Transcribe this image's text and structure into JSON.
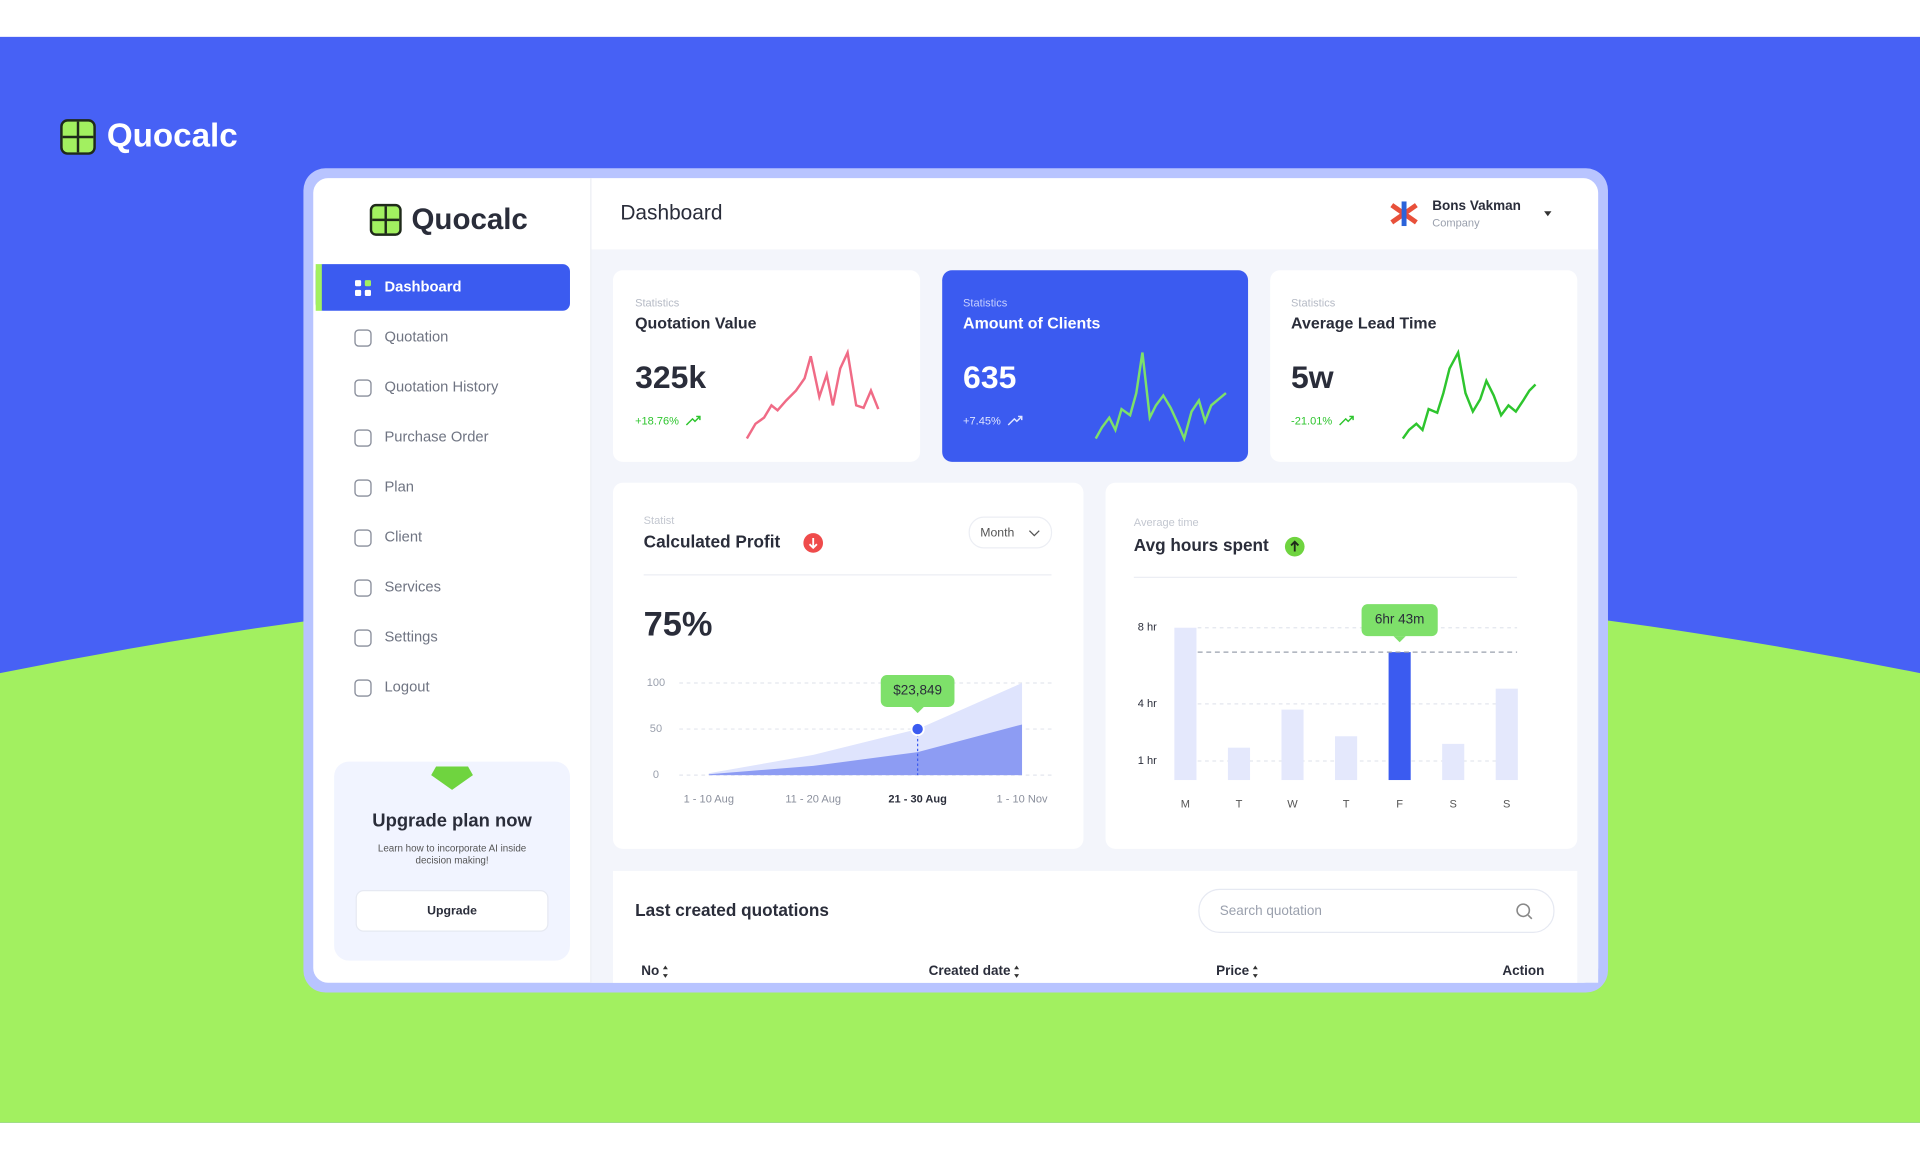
{
  "brand": "Quocalc",
  "sidebar": {
    "brand": "Quocalc",
    "nav": [
      "Dashboard",
      "Quotation",
      "Quotation History",
      "Purchase Order",
      "Plan",
      "Client",
      "Services",
      "Settings",
      "Logout"
    ],
    "upgrade": {
      "title": "Upgrade plan now",
      "text": [
        "Learn how to incorporate AI inside",
        "decision making!"
      ],
      "button": "Upgrade"
    }
  },
  "header": {
    "title": "Dashboard",
    "user": {
      "name": "Bons Vakman",
      "role": "Company"
    }
  },
  "stats": [
    {
      "label": "Statistics",
      "title": "Quotation Value",
      "value": "325k",
      "change": "+18.76%"
    },
    {
      "label": "Statistics",
      "title": "Amount of Clients",
      "value": "635",
      "change": "+7.45%"
    },
    {
      "label": "Statistics",
      "title": "Average Lead Time",
      "value": "5w",
      "change": "-21.01%"
    }
  ],
  "chart_data": [
    {
      "type": "area",
      "subtitle": "Statist",
      "title": "Calculated Profit",
      "kpi": "75%",
      "filter": "Month",
      "categories": [
        "1 - 10 Aug",
        "11 - 20 Aug",
        "21 - 30 Aug",
        "1 - 10 Nov"
      ],
      "series": [
        {
          "color": "#dfe4fd",
          "values": [
            2,
            22,
            50,
            100
          ]
        },
        {
          "color": "#8d9cf3",
          "values": [
            1,
            10,
            25,
            55
          ]
        }
      ],
      "ylim": [
        0,
        100
      ],
      "yticks": [
        0,
        50,
        100
      ],
      "grid": true,
      "marker_color": "#3b5bf0",
      "tooltip": {
        "category": "21 - 30 Aug",
        "label": "$23,849"
      }
    },
    {
      "type": "bar",
      "subtitle": "Average time",
      "title": "Avg hours spent",
      "categories": [
        "M",
        "T",
        "W",
        "T",
        "F",
        "S",
        "S"
      ],
      "values": [
        8,
        1.7,
        3.7,
        2.3,
        6.72,
        1.9,
        4.8
      ],
      "value_labels": [
        null,
        null,
        null,
        null,
        "6hr 43m",
        null,
        null
      ],
      "colors": [
        "#e4e8fc",
        "#e4e8fc",
        "#e4e8fc",
        "#e4e8fc",
        "#3b5bf0",
        "#e4e8fc",
        "#e4e8fc"
      ],
      "ylim": [
        0,
        8
      ],
      "yticks": [
        {
          "value": 1,
          "label": "1 hr"
        },
        {
          "value": 4,
          "label": "4 hr"
        },
        {
          "value": 8,
          "label": "8 hr"
        }
      ],
      "grid": true
    }
  ],
  "table": {
    "title": "Last created quotations",
    "search_placeholder": "Search quotation",
    "columns": [
      "No",
      "Created date",
      "Price",
      "Action"
    ]
  }
}
